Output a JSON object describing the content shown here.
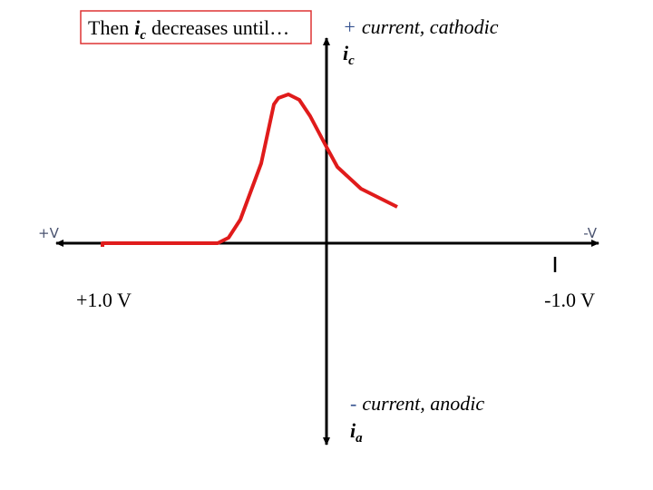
{
  "callout": {
    "before": "Then",
    "var": "i",
    "sub": "c",
    "after": "decreases until…"
  },
  "cathodic": {
    "sign": "+",
    "text": "current, cathodic",
    "var": "i",
    "sub": "c"
  },
  "anodic": {
    "sign": "-",
    "text": "current, anodic",
    "var": "i",
    "sub": "a"
  },
  "x_axis": {
    "left": "+V",
    "right": "-V",
    "left_value": "+1.0 V",
    "right_value": "-1.0 V"
  }
}
